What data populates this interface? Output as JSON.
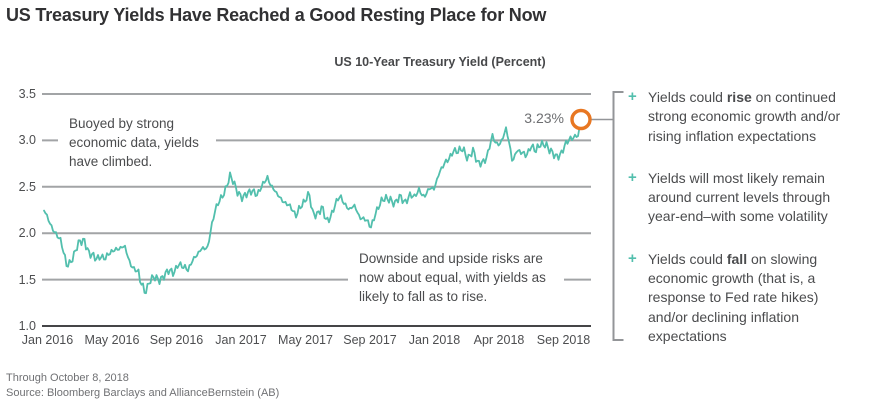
{
  "title": "US Treasury Yields Have Reached a Good Resting Place for Now",
  "chart": {
    "subtitle": "US 10-Year Treasury Yield (Percent)",
    "y_axis": {
      "ticks": [
        3.5,
        3.0,
        2.5,
        2.0,
        1.5,
        1.0
      ]
    },
    "x_axis": {
      "ticks": [
        "Jan 2016",
        "May 2016",
        "Sep 2016",
        "Jan 2017",
        "May 2017",
        "Sep 2017",
        "Jan 2018",
        "Apr 2018",
        "Sep 2018"
      ]
    },
    "end_point_label": "3.23%",
    "callout_left": "Buoyed by strong economic data, yields have climbed.",
    "callout_right": "Downside and upside risks are now about equal, with yields as likely to fall as to rise."
  },
  "chart_data": {
    "type": "line",
    "title": "US 10-Year Treasury Yield (Percent)",
    "xlabel": "",
    "ylabel": "Percent",
    "ylim": [
      1.0,
      3.5
    ],
    "y_gridlines": [
      1.0,
      1.5,
      2.0,
      2.5,
      3.0,
      3.5
    ],
    "x_tick_labels": [
      "Jan 2016",
      "May 2016",
      "Sep 2016",
      "Jan 2017",
      "May 2017",
      "Sep 2017",
      "Jan 2018",
      "Apr 2018",
      "Sep 2018"
    ],
    "x_unit": "months since Jan 2016",
    "x_range": [
      0,
      33.25
    ],
    "last_point": {
      "date": "October 8, 2018",
      "value": 3.23,
      "label": "3.23%"
    },
    "series": [
      {
        "name": "US 10-Year Treasury Yield (%)",
        "points": [
          [
            0.0,
            2.24
          ],
          [
            0.3,
            2.12
          ],
          [
            0.7,
            2.02
          ],
          [
            1.0,
            1.92
          ],
          [
            1.4,
            1.66
          ],
          [
            1.8,
            1.74
          ],
          [
            2.2,
            1.9
          ],
          [
            2.5,
            1.94
          ],
          [
            2.8,
            1.77
          ],
          [
            3.2,
            1.72
          ],
          [
            3.5,
            1.77
          ],
          [
            3.8,
            1.72
          ],
          [
            4.1,
            1.78
          ],
          [
            4.4,
            1.85
          ],
          [
            4.7,
            1.83
          ],
          [
            5.0,
            1.84
          ],
          [
            5.3,
            1.7
          ],
          [
            5.6,
            1.61
          ],
          [
            5.85,
            1.56
          ],
          [
            5.95,
            1.46
          ],
          [
            6.1,
            1.44
          ],
          [
            6.25,
            1.37
          ],
          [
            6.5,
            1.48
          ],
          [
            6.8,
            1.51
          ],
          [
            7.1,
            1.5
          ],
          [
            7.4,
            1.55
          ],
          [
            7.7,
            1.58
          ],
          [
            8.0,
            1.57
          ],
          [
            8.3,
            1.69
          ],
          [
            8.6,
            1.62
          ],
          [
            8.9,
            1.6
          ],
          [
            9.2,
            1.74
          ],
          [
            9.5,
            1.76
          ],
          [
            9.8,
            1.83
          ],
          [
            10.1,
            1.86
          ],
          [
            10.35,
            2.07
          ],
          [
            10.6,
            2.24
          ],
          [
            10.9,
            2.38
          ],
          [
            11.2,
            2.47
          ],
          [
            11.5,
            2.6
          ],
          [
            11.7,
            2.55
          ],
          [
            12.0,
            2.45
          ],
          [
            12.3,
            2.37
          ],
          [
            12.6,
            2.42
          ],
          [
            12.9,
            2.48
          ],
          [
            13.2,
            2.41
          ],
          [
            13.5,
            2.5
          ],
          [
            13.8,
            2.62
          ],
          [
            14.1,
            2.5
          ],
          [
            14.4,
            2.4
          ],
          [
            14.7,
            2.37
          ],
          [
            15.0,
            2.33
          ],
          [
            15.3,
            2.25
          ],
          [
            15.55,
            2.18
          ],
          [
            15.8,
            2.3
          ],
          [
            16.1,
            2.33
          ],
          [
            16.4,
            2.41
          ],
          [
            16.6,
            2.23
          ],
          [
            16.9,
            2.21
          ],
          [
            17.2,
            2.26
          ],
          [
            17.45,
            2.13
          ],
          [
            17.7,
            2.19
          ],
          [
            18.0,
            2.3
          ],
          [
            18.3,
            2.39
          ],
          [
            18.6,
            2.33
          ],
          [
            18.9,
            2.25
          ],
          [
            19.2,
            2.28
          ],
          [
            19.5,
            2.19
          ],
          [
            19.8,
            2.16
          ],
          [
            20.2,
            2.05
          ],
          [
            20.5,
            2.24
          ],
          [
            20.8,
            2.33
          ],
          [
            21.1,
            2.36
          ],
          [
            21.4,
            2.38
          ],
          [
            21.7,
            2.32
          ],
          [
            22.0,
            2.38
          ],
          [
            22.3,
            2.34
          ],
          [
            22.6,
            2.42
          ],
          [
            22.9,
            2.37
          ],
          [
            23.2,
            2.48
          ],
          [
            23.5,
            2.4
          ],
          [
            23.8,
            2.46
          ],
          [
            24.1,
            2.48
          ],
          [
            24.4,
            2.66
          ],
          [
            24.7,
            2.72
          ],
          [
            25.0,
            2.79
          ],
          [
            25.3,
            2.91
          ],
          [
            25.6,
            2.87
          ],
          [
            25.9,
            2.9
          ],
          [
            26.2,
            2.82
          ],
          [
            26.5,
            2.89
          ],
          [
            26.8,
            2.74
          ],
          [
            27.1,
            2.78
          ],
          [
            27.4,
            2.83
          ],
          [
            27.7,
            3.03
          ],
          [
            28.0,
            2.97
          ],
          [
            28.3,
            3.0
          ],
          [
            28.55,
            3.11
          ],
          [
            28.8,
            2.93
          ],
          [
            28.95,
            2.78
          ],
          [
            29.2,
            2.9
          ],
          [
            29.5,
            2.85
          ],
          [
            29.8,
            2.84
          ],
          [
            30.1,
            2.96
          ],
          [
            30.4,
            2.87
          ],
          [
            30.7,
            2.96
          ],
          [
            31.0,
            2.98
          ],
          [
            31.3,
            2.87
          ],
          [
            31.6,
            2.82
          ],
          [
            31.9,
            2.86
          ],
          [
            32.2,
            2.94
          ],
          [
            32.5,
            3.0
          ],
          [
            32.8,
            3.06
          ],
          [
            33.0,
            3.05
          ],
          [
            33.15,
            3.18
          ],
          [
            33.25,
            3.23
          ]
        ]
      }
    ]
  },
  "bullet_glyph": "+",
  "bullets": [
    {
      "segments": [
        {
          "text": "Yields could ",
          "bold": false
        },
        {
          "text": "rise",
          "bold": true
        },
        {
          "text": " on continued strong economic growth and/or rising inflation expectations",
          "bold": false
        }
      ]
    },
    {
      "segments": [
        {
          "text": "Yields will most likely remain around current levels through year-end–with some volatility",
          "bold": false
        }
      ]
    },
    {
      "segments": [
        {
          "text": "Yields could ",
          "bold": false
        },
        {
          "text": "fall",
          "bold": true
        },
        {
          "text": " on slowing economic growth (that is, a response to Fed rate hikes) and/or declining inflation expectations",
          "bold": false
        }
      ]
    }
  ],
  "footnote": {
    "line1": "Through October 8, 2018",
    "line2": "Source: Bloomberg Barclays and AllianceBernstein (AB)"
  },
  "colors": {
    "line": "#52bfad",
    "marker_ring": "#e87722",
    "grid": "#a2a4a6",
    "axis": "#454547",
    "bracket": "#939598",
    "accent_plus": "#52bfad"
  }
}
